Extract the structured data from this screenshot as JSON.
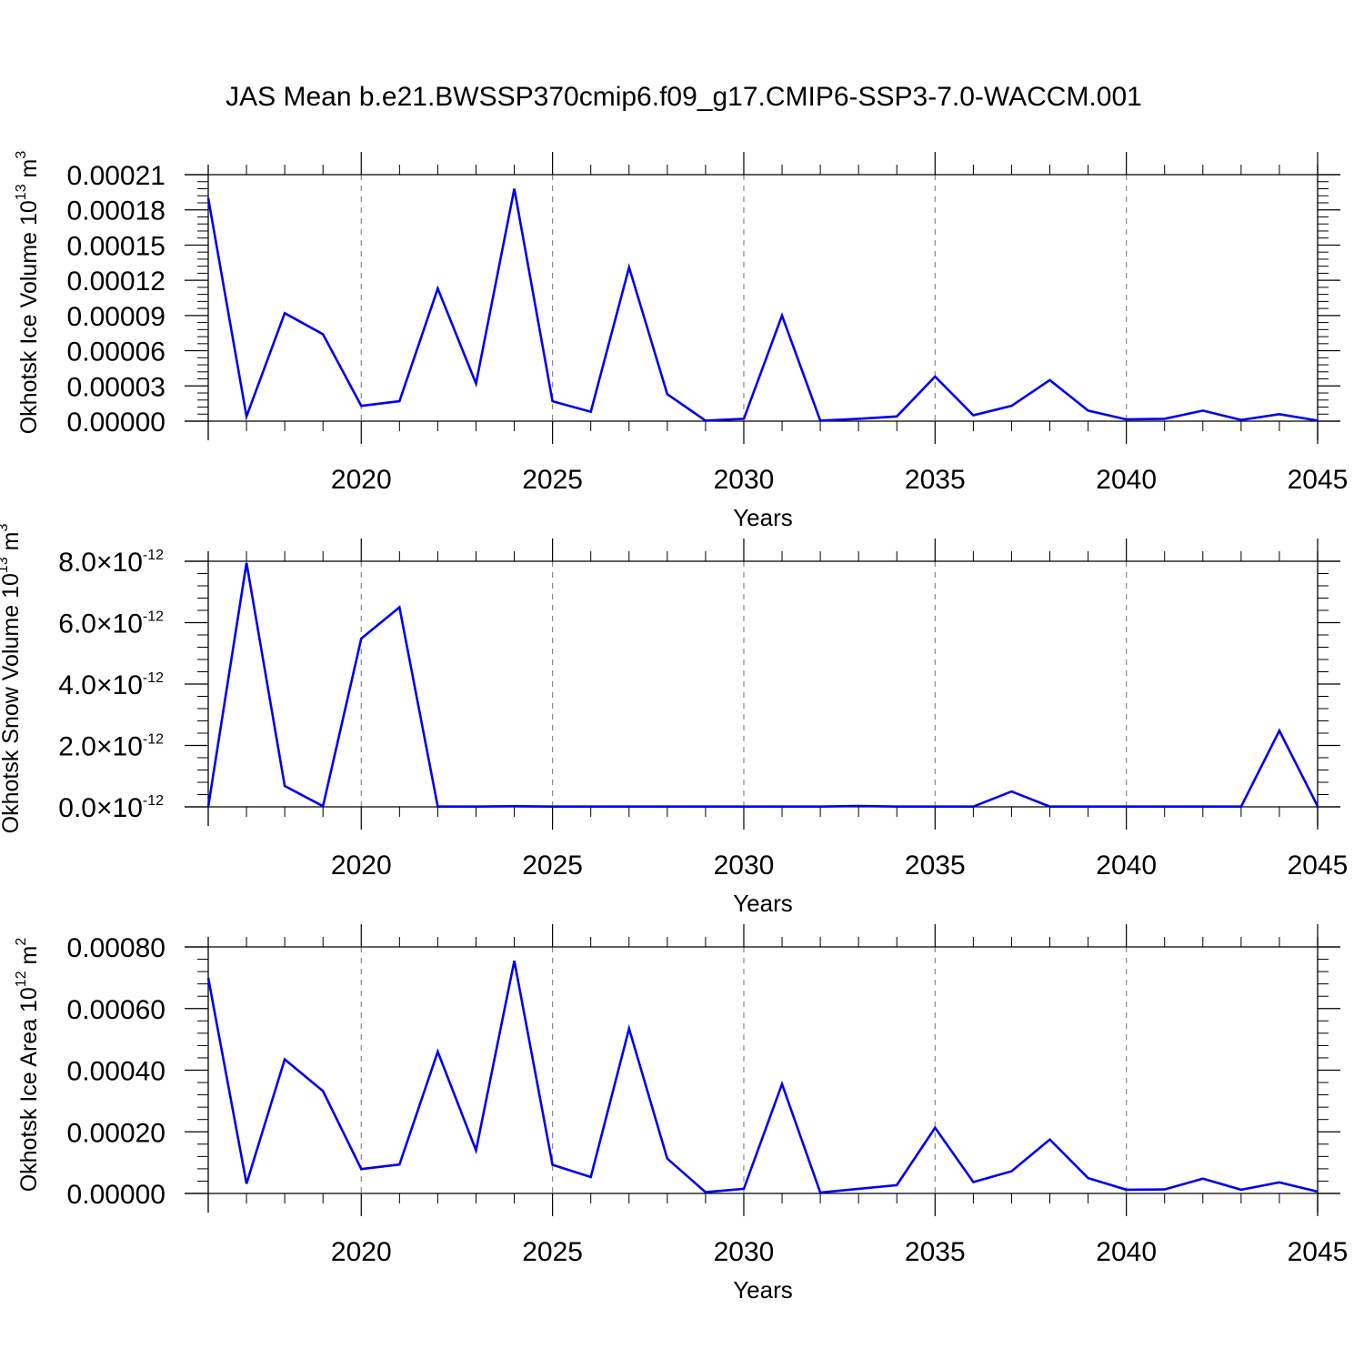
{
  "title": "JAS Mean b.e21.BWSSP370cmip6.f09_g17.CMIP6-SSP3-7.0-WACCM.001",
  "colors": {
    "line": "#0000ee",
    "axes": "#000000",
    "grid": "#888888"
  },
  "chart_data": [
    {
      "type": "line",
      "ylabel": "Okhotsk Ice Volume 10",
      "ylabel_exp": "13",
      "ylabel_unit": "m",
      "ylabel_unit_exp": "3",
      "xlabel": "Years",
      "xlim": [
        2016,
        2045
      ],
      "ylim": [
        0,
        0.00021
      ],
      "xticks": [
        2020,
        2025,
        2030,
        2035,
        2040,
        2045
      ],
      "xtick_labels": [
        "2020",
        "2025",
        "2030",
        "2035",
        "2040",
        "2045"
      ],
      "yticks": [
        0,
        3e-05,
        6e-05,
        9e-05,
        0.00012,
        0.00015,
        0.00018,
        0.00021
      ],
      "ytick_labels": [
        "0.00000",
        "0.00003",
        "0.00006",
        "0.00009",
        "0.00012",
        "0.00015",
        "0.00018",
        "0.00021"
      ],
      "grid": "vertical dashed at major x ticks",
      "x": [
        2016,
        2017,
        2018,
        2019,
        2020,
        2021,
        2022,
        2023,
        2024,
        2025,
        2026,
        2027,
        2028,
        2029,
        2030,
        2031,
        2032,
        2033,
        2034,
        2035,
        2036,
        2037,
        2038,
        2039,
        2040,
        2041,
        2042,
        2043,
        2044,
        2045
      ],
      "y": [
        0.00019,
        4e-06,
        9.2e-05,
        7.4e-05,
        1.3e-05,
        1.7e-05,
        0.000113,
        3.2e-05,
        0.000198,
        1.7e-05,
        8e-06,
        0.000131,
        2.3e-05,
        5e-07,
        2e-06,
        9e-05,
        5e-07,
        2e-06,
        4e-06,
        3.8e-05,
        5e-06,
        1.3e-05,
        3.5e-05,
        9e-06,
        1.5e-06,
        2e-06,
        9e-06,
        1e-06,
        6e-06,
        5e-07
      ]
    },
    {
      "type": "line",
      "ylabel": "Okhotsk Snow Volume 10",
      "ylabel_exp": "13",
      "ylabel_unit": "m",
      "ylabel_unit_exp": "3",
      "xlabel": "Years",
      "xlim": [
        2016,
        2045
      ],
      "ylim": [
        0,
        8e-12
      ],
      "xticks": [
        2020,
        2025,
        2030,
        2035,
        2040,
        2045
      ],
      "xtick_labels": [
        "2020",
        "2025",
        "2030",
        "2035",
        "2040",
        "2045"
      ],
      "yticks": [
        0,
        2e-12,
        4e-12,
        6e-12,
        8e-12
      ],
      "ytick_labels": [
        "0.0",
        "2.0",
        "4.0",
        "6.0",
        "8.0"
      ],
      "ytick_multiplier": "10",
      "ytick_exp": "-12",
      "grid": "vertical dashed at major x ticks",
      "x": [
        2016,
        2017,
        2018,
        2019,
        2020,
        2021,
        2022,
        2023,
        2024,
        2025,
        2026,
        2027,
        2028,
        2029,
        2030,
        2031,
        2032,
        2033,
        2034,
        2035,
        2036,
        2037,
        2038,
        2039,
        2040,
        2041,
        2042,
        2043,
        2044,
        2045
      ],
      "y": [
        0,
        7.95e-12,
        6.8e-13,
        2e-14,
        5.48e-12,
        6.5e-12,
        1e-14,
        1e-14,
        2e-14,
        1e-14,
        1e-14,
        1e-14,
        1e-14,
        1e-14,
        1e-14,
        1e-14,
        1e-14,
        3e-14,
        1e-14,
        1e-14,
        1e-14,
        5e-13,
        1e-14,
        1e-14,
        1e-14,
        1e-14,
        1e-14,
        1e-14,
        2.48e-12,
        2e-14
      ]
    },
    {
      "type": "line",
      "ylabel": "Okhotsk Ice Area 10",
      "ylabel_exp": "12",
      "ylabel_unit": "m",
      "ylabel_unit_exp": "2",
      "xlabel": "Years",
      "xlim": [
        2016,
        2045
      ],
      "ylim": [
        0,
        0.0008
      ],
      "xticks": [
        2020,
        2025,
        2030,
        2035,
        2040,
        2045
      ],
      "xtick_labels": [
        "2020",
        "2025",
        "2030",
        "2035",
        "2040",
        "2045"
      ],
      "yticks": [
        0,
        0.0002,
        0.0004,
        0.0006,
        0.0008
      ],
      "ytick_labels": [
        "0.00000",
        "0.00020",
        "0.00040",
        "0.00060",
        "0.00080"
      ],
      "grid": "vertical dashed at major x ticks",
      "x": [
        2016,
        2017,
        2018,
        2019,
        2020,
        2021,
        2022,
        2023,
        2024,
        2025,
        2026,
        2027,
        2028,
        2029,
        2030,
        2031,
        2032,
        2033,
        2034,
        2035,
        2036,
        2037,
        2038,
        2039,
        2040,
        2041,
        2042,
        2043,
        2044,
        2045
      ],
      "y": [
        0.0007,
        3.2e-05,
        0.000435,
        0.000332,
        7.9e-05,
        9.4e-05,
        0.00046,
        0.00014,
        0.000755,
        9.3e-05,
        5.3e-05,
        0.000535,
        0.000113,
        4e-06,
        1.5e-05,
        0.000355,
        3e-06,
        1.5e-05,
        2.7e-05,
        0.000213,
        3.7e-05,
        7.2e-05,
        0.000175,
        5e-05,
        1.2e-05,
        1.3e-05,
        4.8e-05,
        1.2e-05,
        3.6e-05,
        6e-06
      ]
    }
  ]
}
